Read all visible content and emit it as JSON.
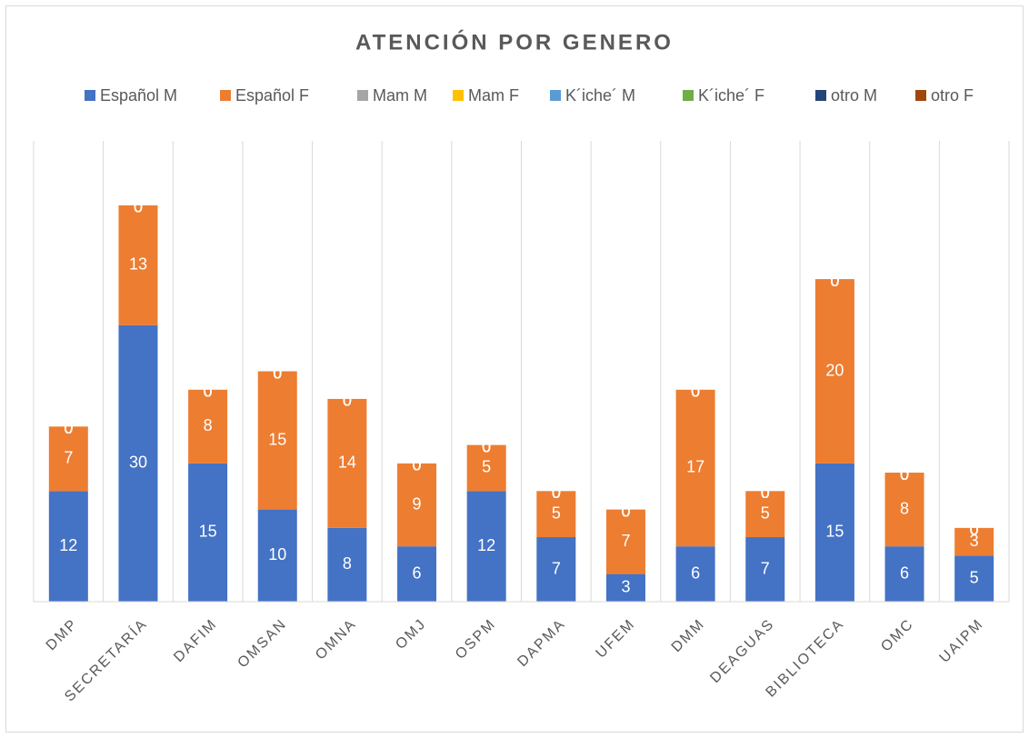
{
  "chart_data": {
    "type": "stacked_bar",
    "title": "ATENCIÓN POR GENERO",
    "categories": [
      "DMP",
      "SECRETARÍA",
      "DAFIM",
      "OMSAN",
      "OMNA",
      "OMJ",
      "OSPM",
      "DAPMA",
      "UFEM",
      "DMM",
      "DEAGUAS",
      "BIBLIOTECA",
      "OMC",
      "UAIPM"
    ],
    "series": [
      {
        "name": "Español M",
        "color": "#4472c4",
        "values": [
          12,
          30,
          15,
          10,
          8,
          6,
          12,
          7,
          3,
          6,
          7,
          15,
          6,
          5
        ]
      },
      {
        "name": "Español F",
        "color": "#ed7d31",
        "values": [
          7,
          13,
          8,
          15,
          14,
          9,
          5,
          5,
          7,
          17,
          5,
          20,
          8,
          3
        ]
      },
      {
        "name": "Mam M",
        "color": "#a5a5a5",
        "values": [
          0,
          0,
          0,
          0,
          0,
          0,
          0,
          0,
          0,
          0,
          0,
          0,
          0,
          0
        ]
      },
      {
        "name": "Mam F",
        "color": "#ffc000",
        "values": [
          0,
          0,
          0,
          0,
          0,
          0,
          0,
          0,
          0,
          0,
          0,
          0,
          0,
          0
        ]
      },
      {
        "name": "K´iche´ M",
        "color": "#5b9bd5",
        "values": [
          0,
          0,
          0,
          0,
          0,
          0,
          0,
          0,
          0,
          0,
          0,
          0,
          0,
          0
        ]
      },
      {
        "name": "K´iche´ F",
        "color": "#70ad47",
        "values": [
          0,
          0,
          0,
          0,
          0,
          0,
          0,
          0,
          0,
          0,
          0,
          0,
          0,
          0
        ]
      },
      {
        "name": "otro M",
        "color": "#264478",
        "values": [
          0,
          0,
          0,
          0,
          0,
          0,
          0,
          0,
          0,
          0,
          0,
          0,
          0,
          0
        ]
      },
      {
        "name": "otro F",
        "color": "#9e480e",
        "values": [
          0,
          0,
          0,
          0,
          0,
          0,
          0,
          0,
          0,
          0,
          0,
          0,
          0,
          0
        ]
      }
    ],
    "ylim": [
      0,
      50
    ],
    "legend": "top"
  }
}
